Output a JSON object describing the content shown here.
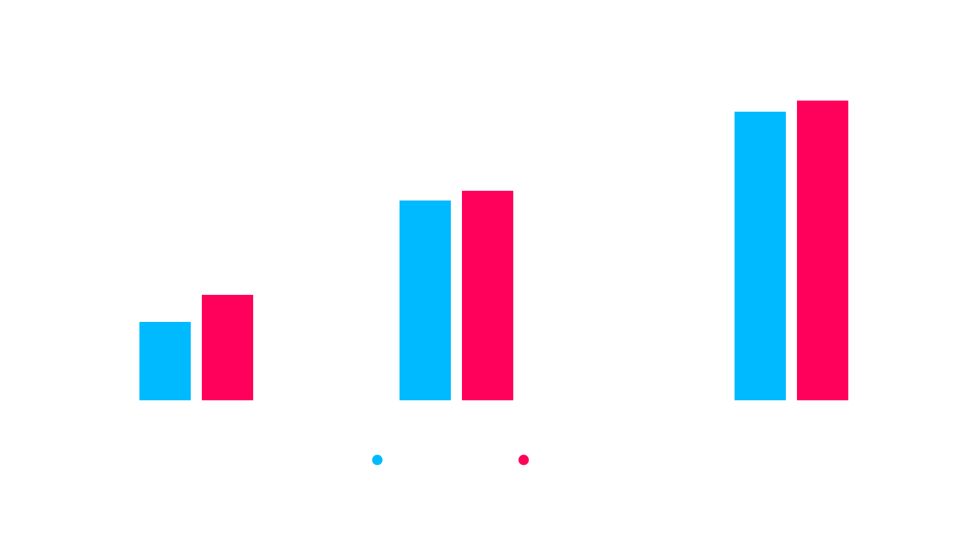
{
  "chart_data": {
    "type": "bar",
    "title": "",
    "xlabel": "",
    "ylabel": "",
    "categories": [
      "",
      "",
      ""
    ],
    "series": [
      {
        "color": "#00BAFF",
        "values": [
          113,
          288,
          416
        ]
      },
      {
        "color": "#FF005A",
        "values": [
          152,
          302,
          432
        ]
      }
    ],
    "ylim": [
      0,
      440
    ],
    "grid": false,
    "legend_position": "bottom-center"
  }
}
